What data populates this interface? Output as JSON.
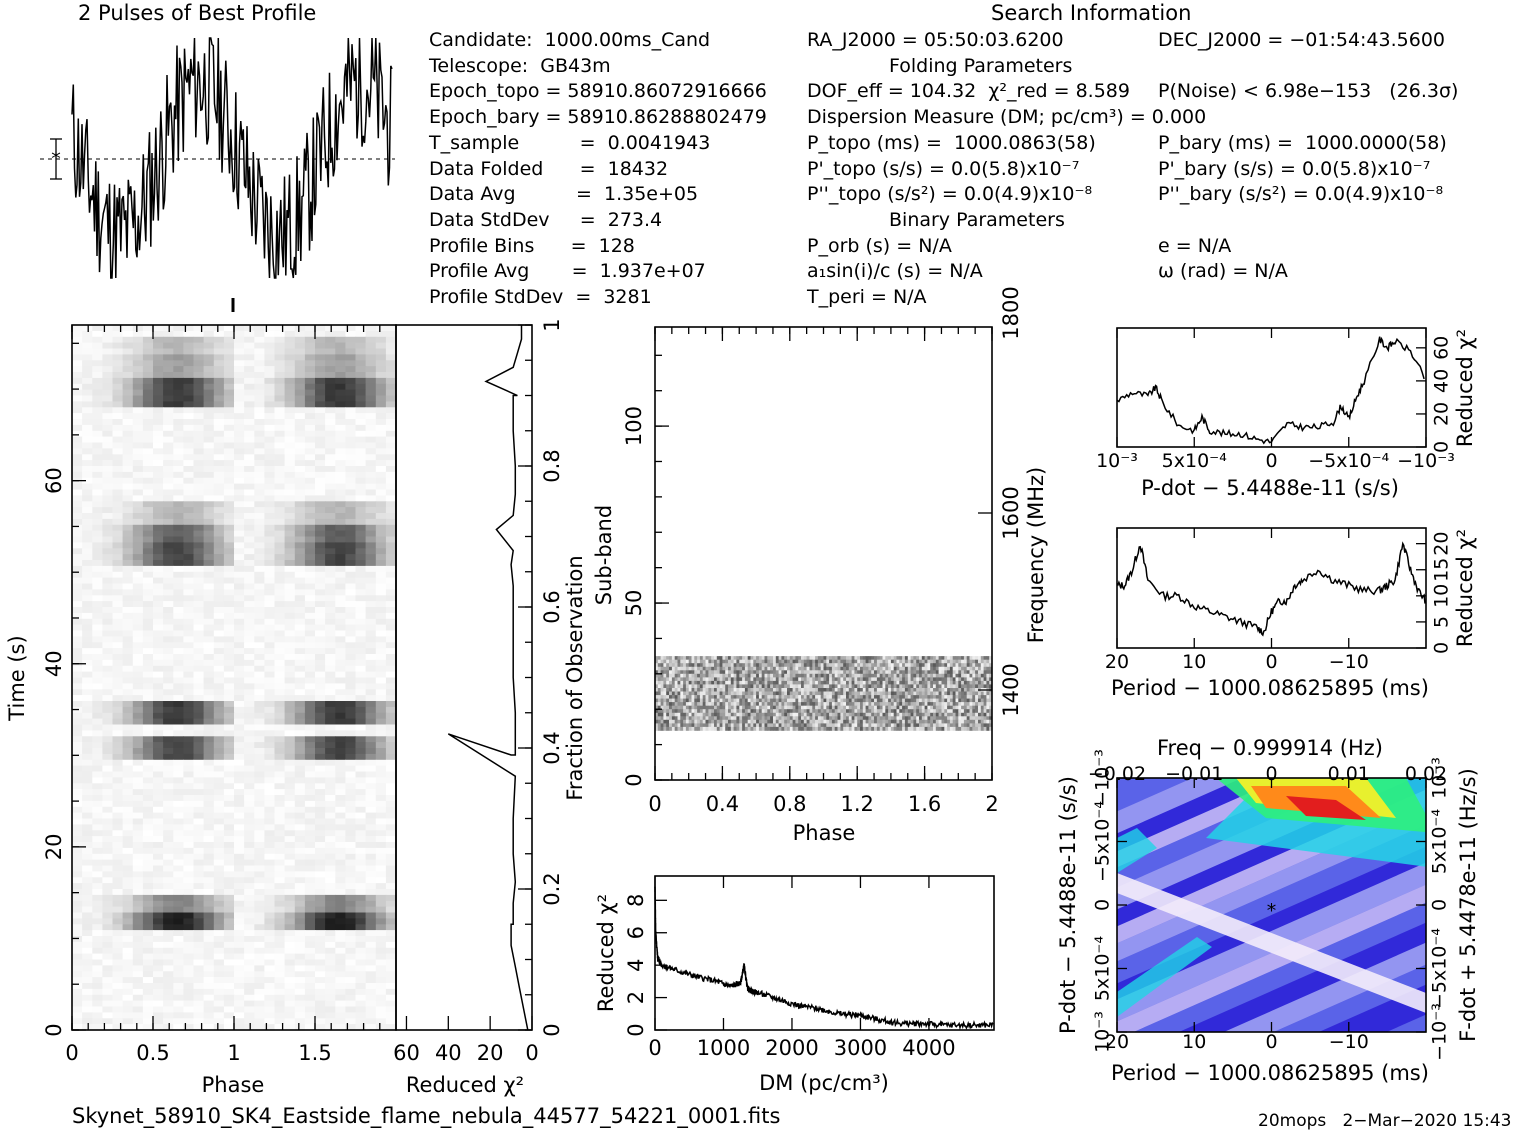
{
  "header": {
    "profile_title": "2 Pulses of Best Profile",
    "search_title": "Search Information",
    "folding_title": "Folding Parameters",
    "binary_title": "Binary Parameters"
  },
  "info_left": [
    "Candidate:  1000.00ms_Cand",
    "Telescope:  GB43m",
    "Epoch_topo = 58910.86072916666",
    "Epoch_bary = 58910.86288802479",
    "T_sample          =  0.0041943",
    "Data Folded      =  18432",
    "Data Avg          =  1.35e+05",
    "Data StdDev     =  273.4",
    "Profile Bins      =  128",
    "Profile Avg       =  1.937e+07",
    "Profile StdDev  =  3281"
  ],
  "info_mid": [
    "RA_J2000 = 05:50:03.6200",
    "",
    "DOF_eff = 104.32  χ²_red = 8.589",
    "Dispersion Measure (DM; pc/cm³) = 0.000",
    "P_topo (ms) =  1000.0863(58)",
    "P'_topo (s/s) = 0.0(5.8)x10⁻⁷",
    "P''_topo (s/s²) = 0.0(4.9)x10⁻⁸",
    "",
    "P_orb (s) = N/A",
    "a₁sin(i)/c (s) = N/A",
    "T_peri = N/A"
  ],
  "info_right": [
    "DEC_J2000 = −01:54:43.5600",
    "",
    "P(Noise) < 6.98e−153   (26.3σ)",
    "",
    "P_bary (ms) =  1000.0000(58)",
    "P'_bary (s/s) = 0.0(5.8)x10⁻⁷",
    "P''_bary (s/s²) = 0.0(4.9)x10⁻⁸",
    "",
    "e = N/A",
    "ω (rad) = N/A",
    ""
  ],
  "footer": {
    "filename": "Skynet_58910_SK4_Eastside_flame_nebula_44577_54221_0001.fits",
    "stamp": "20mops   2−Mar−2020 15:43"
  },
  "chart_data": [
    {
      "id": "time-phase",
      "type": "heatmap",
      "xlabel": "Phase",
      "ylabel": "Time (s)",
      "xlim": [
        0,
        2
      ],
      "ylim": [
        0,
        77
      ],
      "xticks": [
        "0",
        "0.5",
        "1",
        "1.5"
      ],
      "yticks": [
        "0",
        "20",
        "40",
        "60"
      ],
      "pulse_segments_s": [
        [
          11,
          13,
          0.85
        ],
        [
          13,
          15,
          0.45
        ],
        [
          29.5,
          32,
          0.7
        ],
        [
          33.5,
          36,
          0.75
        ],
        [
          50.5,
          53,
          0.7
        ],
        [
          53,
          55.5,
          0.6
        ],
        [
          55.5,
          58,
          0.25
        ],
        [
          68,
          71,
          0.75
        ],
        [
          71,
          74,
          0.35
        ],
        [
          74,
          76,
          0.25
        ]
      ]
    },
    {
      "id": "time-chi2",
      "type": "line",
      "xlabel": "Reduced χ²",
      "ylabel": "Fraction of Observation",
      "xlim": [
        65,
        0
      ],
      "ylim": [
        0,
        1
      ],
      "xticks": [
        "60",
        "40",
        "20",
        "0"
      ],
      "yticks": [
        "0",
        "0.2",
        "0.4",
        "0.6",
        "0.8",
        "1"
      ],
      "x": [
        2,
        4,
        6,
        8,
        10,
        10,
        9,
        9,
        8,
        9,
        9,
        8,
        40,
        10,
        8,
        8,
        9,
        9,
        9,
        9,
        10,
        9,
        17,
        9,
        8,
        8,
        9,
        9,
        9,
        7,
        22,
        9,
        7,
        5,
        5
      ],
      "y": [
        0,
        0.03,
        0.06,
        0.09,
        0.12,
        0.15,
        0.15,
        0.18,
        0.21,
        0.25,
        0.3,
        0.36,
        0.42,
        0.39,
        0.39,
        0.45,
        0.5,
        0.55,
        0.6,
        0.63,
        0.66,
        0.68,
        0.71,
        0.73,
        0.76,
        0.8,
        0.85,
        0.88,
        0.9,
        0.9,
        0.92,
        0.94,
        0.96,
        0.98,
        1.0
      ]
    },
    {
      "id": "subband-phase",
      "type": "heatmap",
      "xlabel": "Phase",
      "ylabel": "Sub-band",
      "y2label": "Frequency (MHz)",
      "xlim": [
        0,
        2
      ],
      "ylim": [
        0,
        128
      ],
      "xticks": [
        "0",
        "0.4",
        "0.8",
        "1.2",
        "1.6",
        "2"
      ],
      "yticks": [
        "0",
        "50",
        "100"
      ],
      "y2ticks": [
        "1400",
        "1600",
        "1800"
      ],
      "signal_subbands": [
        14,
        35
      ]
    },
    {
      "id": "dm-chi2",
      "type": "line",
      "xlabel": "DM (pc/cm³)",
      "ylabel": "Reduced χ²",
      "xlim": [
        0,
        4950
      ],
      "ylim": [
        0,
        9.5
      ],
      "xticks": [
        "0",
        "1000",
        "2000",
        "3000",
        "4000"
      ],
      "yticks": [
        "0",
        "2",
        "4",
        "6",
        "8"
      ],
      "x": [
        0,
        10,
        40,
        100,
        300,
        600,
        900,
        1100,
        1250,
        1300,
        1350,
        1400,
        1500,
        1800,
        2100,
        2400,
        2700,
        3000,
        3300,
        3600,
        3900,
        4200,
        4600,
        4950
      ],
      "y": [
        8.8,
        6.0,
        4.4,
        4.0,
        3.7,
        3.3,
        3.0,
        2.7,
        2.9,
        4.0,
        2.6,
        2.4,
        2.3,
        1.9,
        1.5,
        1.3,
        1.0,
        0.9,
        0.6,
        0.4,
        0.4,
        0.3,
        0.3,
        0.3
      ]
    },
    {
      "id": "pdot-chi2",
      "type": "line",
      "xlabel": "P-dot − 5.4488e-11 (s/s)",
      "ylabel": "Reduced χ²",
      "xlim": [
        0.001,
        -0.001
      ],
      "ylim": [
        0,
        72
      ],
      "xticks": [
        "10⁻³",
        "5x10⁻⁴",
        "0",
        "−5x10⁻⁴",
        "−10⁻³"
      ],
      "yticks": [
        "0",
        "20",
        "40",
        "60"
      ],
      "x": [
        0.001,
        0.0009,
        0.0008,
        0.00075,
        0.0007,
        0.0006,
        0.0005,
        0.00045,
        0.0004,
        0.0003,
        0.0002,
        0.0001,
        0,
        -0.0001,
        -0.0002,
        -0.0003,
        -0.0004,
        -0.00045,
        -0.0005,
        -0.00055,
        -0.0006,
        -0.0007,
        -0.00075,
        -0.0008,
        -0.0009,
        -0.001
      ],
      "y": [
        28,
        33,
        31,
        36,
        26,
        13,
        10,
        18,
        10,
        8,
        8,
        5,
        3,
        14,
        12,
        12,
        15,
        25,
        17,
        30,
        40,
        65,
        60,
        64,
        58,
        40
      ]
    },
    {
      "id": "period-chi2",
      "type": "line",
      "xlabel": "Period − 1000.08625895 (ms)",
      "ylabel": "Reduced χ²",
      "xlim": [
        20,
        -20
      ],
      "ylim": [
        0,
        23
      ],
      "xticks": [
        "20",
        "10",
        "0",
        "−10"
      ],
      "yticks": [
        "0",
        "5",
        "10",
        "15",
        "20"
      ],
      "x": [
        20,
        19,
        18,
        17,
        16,
        14,
        12,
        10,
        8,
        6,
        4,
        2,
        1,
        0,
        -1,
        -2,
        -3,
        -4,
        -6,
        -8,
        -10,
        -12,
        -14,
        -15,
        -16,
        -17,
        -18,
        -19,
        -20
      ],
      "y": [
        12,
        12,
        15,
        20,
        13,
        10,
        10,
        8,
        7,
        6,
        5,
        4,
        3,
        7,
        9,
        9,
        12,
        13,
        15,
        13,
        12,
        11,
        11,
        12,
        13,
        20,
        15,
        11,
        9
      ]
    },
    {
      "id": "period-pdot-map",
      "type": "heatmap",
      "title": "Freq − 0.999914 (Hz)",
      "xlabel": "Period − 1000.08625895 (ms)",
      "ylabel": "P-dot − 5.4488e-11 (s/s)",
      "y2label": "F-dot + 5.4478e-11 (Hz/s)",
      "xlim": [
        20,
        -20
      ],
      "ylim": [
        0.001,
        -0.001
      ],
      "xticks": [
        "20",
        "10",
        "0",
        "−10"
      ],
      "x2ticks": [
        "−0.02",
        "−0.01",
        "0",
        "0.01",
        "0.02"
      ],
      "yticks": [
        "10⁻³",
        "5x10⁻⁴",
        "0",
        "−5x10⁻⁴",
        "−10⁻³"
      ],
      "y2ticks": [
        "−10⁻³",
        "−5x10⁻⁴",
        "0",
        "5x10⁻⁴",
        "10⁻³"
      ],
      "best_marker": [
        0,
        0
      ],
      "colors": [
        "#2a1fd6",
        "#5a63e8",
        "#9e9ef2",
        "#c7b9f5",
        "#22d4e6",
        "#2ef07d",
        "#e8f02e",
        "#ff8a1a",
        "#e21e1e"
      ]
    }
  ]
}
